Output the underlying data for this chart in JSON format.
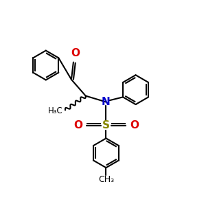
{
  "bg_color": "#ffffff",
  "bond_color": "#000000",
  "N_color": "#0000cc",
  "O_color": "#dd0000",
  "S_color": "#888800",
  "lw": 1.5,
  "ring_r": 0.72,
  "xlim": [
    0,
    10
  ],
  "ylim": [
    0,
    10
  ],
  "figsize": [
    3.0,
    3.0
  ],
  "dpi": 100
}
